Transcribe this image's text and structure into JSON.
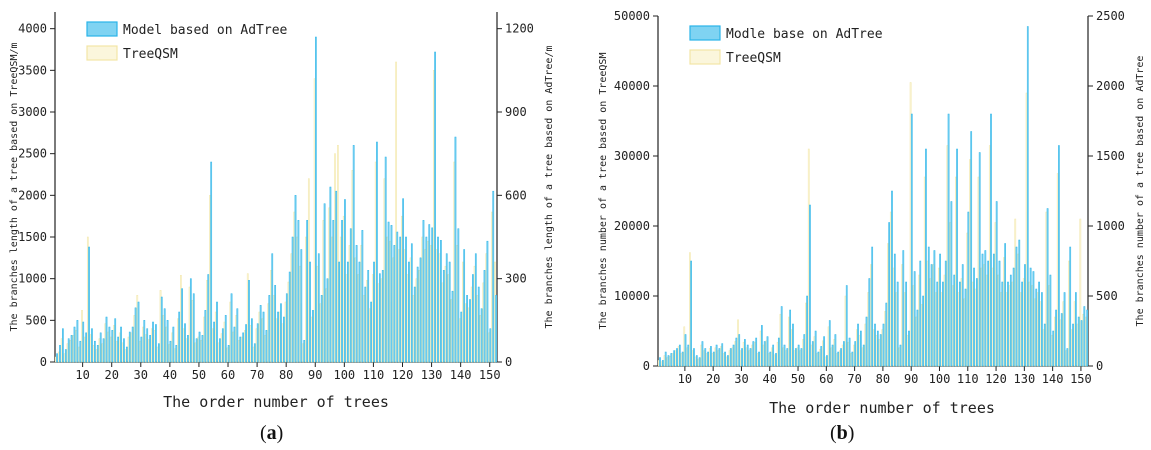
{
  "colors": {
    "model": "#2ab4e8",
    "model_fill": "#7fd3f2",
    "treeqsm": "#f2e6a6",
    "treeqsm_fill": "#fbf6dc",
    "axis": "#222222"
  },
  "captions": {
    "a": "a",
    "b": "b"
  },
  "chart_data": [
    {
      "type": "bar",
      "panel": "a",
      "xlabel": "The order number of trees",
      "ylabel_left": "The branches length of a tree based on TreeQSM/m",
      "ylabel_right": "The branches length of a tree based on AdTree/m",
      "ylim_left": [
        0,
        4200
      ],
      "ylim_right": [
        0,
        1260
      ],
      "xlim": [
        0.5,
        152.5
      ],
      "yticks_left": [
        "0",
        "500",
        "1000",
        "1500",
        "2000",
        "2500",
        "3000",
        "3500",
        "4000"
      ],
      "yticks_right": [
        "0",
        "300",
        "600",
        "900",
        "1200"
      ],
      "xticks": [
        "10",
        "20",
        "30",
        "40",
        "50",
        "60",
        "70",
        "80",
        "90",
        "100",
        "110",
        "120",
        "130",
        "140",
        "150"
      ],
      "legend": [
        "Model based on AdTree",
        "TreeQSM"
      ],
      "legend_position": "top-left",
      "series": [
        {
          "name": "Model based on AdTree",
          "axis": "left",
          "values": [
            100,
            200,
            400,
            150,
            280,
            320,
            420,
            500,
            250,
            480,
            350,
            1380,
            400,
            250,
            200,
            350,
            280,
            540,
            420,
            380,
            520,
            300,
            420,
            280,
            180,
            360,
            420,
            650,
            720,
            300,
            500,
            400,
            320,
            480,
            450,
            220,
            780,
            640,
            500,
            250,
            420,
            200,
            600,
            880,
            460,
            320,
            1000,
            820,
            280,
            360,
            320,
            620,
            1050,
            2400,
            480,
            720,
            280,
            400,
            560,
            200,
            820,
            420,
            640,
            300,
            350,
            450,
            980,
            520,
            220,
            460,
            680,
            600,
            380,
            800,
            1300,
            920,
            600,
            700,
            540,
            820,
            1080,
            1500,
            2000,
            1700,
            1350,
            260,
            1700,
            1200,
            620,
            3900,
            1300,
            800,
            1900,
            1000,
            2100,
            1700,
            2050,
            1200,
            1700,
            1950,
            1200,
            1600,
            2600,
            1400,
            1200,
            1580,
            900,
            1100,
            720,
            1200,
            2640,
            1060,
            1100,
            2460,
            1680,
            1640,
            1400,
            1560,
            1500,
            1960,
            1500,
            1200,
            1420,
            900,
            1140,
            1250,
            1700,
            1500,
            1650,
            1610,
            3720,
            1500,
            1460,
            1100,
            1300,
            1200,
            850,
            2700,
            1600,
            600,
            1350,
            800,
            750,
            1050,
            1300,
            900,
            640,
            1100,
            1450,
            400,
            2050,
            800
          ]
        },
        {
          "name": "TreeQSM",
          "axis": "left",
          "values": [
            60,
            120,
            280,
            100,
            220,
            260,
            320,
            380,
            180,
            620,
            300,
            1500,
            330,
            200,
            150,
            280,
            220,
            460,
            360,
            300,
            440,
            250,
            350,
            230,
            150,
            300,
            350,
            560,
            800,
            250,
            420,
            330,
            270,
            400,
            380,
            180,
            860,
            560,
            420,
            210,
            350,
            160,
            520,
            1040,
            400,
            280,
            900,
            740,
            230,
            300,
            260,
            540,
            980,
            2000,
            400,
            600,
            230,
            340,
            480,
            170,
            720,
            360,
            560,
            260,
            300,
            380,
            1060,
            440,
            180,
            400,
            600,
            520,
            320,
            700,
            1100,
            800,
            520,
            600,
            460,
            720,
            960,
            1300,
            1800,
            1500,
            1150,
            220,
            1500,
            2200,
            540,
            3400,
            1150,
            700,
            1700,
            880,
            1850,
            1500,
            2500,
            2600,
            1500,
            1750,
            1050,
            1400,
            2300,
            1250,
            1050,
            1400,
            800,
            980,
            640,
            1050,
            2400,
            940,
            1000,
            2200,
            1500,
            1450,
            1250,
            3600,
            1350,
            1750,
            1350,
            1050,
            1250,
            800,
            1000,
            1100,
            1500,
            1350,
            1450,
            1400,
            3500,
            1350,
            1300,
            950,
            1150,
            1050,
            750,
            2400,
            1400,
            520,
            1200,
            700,
            650,
            900,
            1150,
            800,
            560,
            950,
            1300,
            350,
            1800,
            1200
          ]
        }
      ]
    },
    {
      "type": "bar",
      "panel": "b",
      "xlabel": "The order number of trees",
      "ylabel_left": "The branches number of a tree based on TreeQSM",
      "ylabel_right": "The branches number of a tree based on AdTree",
      "ylim_left": [
        0,
        50000
      ],
      "ylim_right": [
        0,
        2500
      ],
      "xlim": [
        0.5,
        152.5
      ],
      "yticks_left": [
        "0",
        "10000",
        "20000",
        "30000",
        "40000",
        "50000"
      ],
      "yticks_right": [
        "0",
        "500",
        "1000",
        "1500",
        "2000",
        "2500"
      ],
      "xticks": [
        "10",
        "20",
        "30",
        "40",
        "50",
        "60",
        "70",
        "80",
        "90",
        "100",
        "110",
        "120",
        "130",
        "140",
        "150"
      ],
      "legend": [
        "Modle base on AdTree",
        "TreeQSM"
      ],
      "legend_position": "top-left",
      "series": [
        {
          "name": "Modle base on AdTree",
          "axis": "left",
          "values": [
            1200,
            800,
            2000,
            1500,
            1800,
            2200,
            2500,
            3000,
            2000,
            4500,
            3000,
            15000,
            2500,
            1500,
            1200,
            3500,
            2500,
            2000,
            2800,
            2000,
            3000,
            2500,
            3200,
            2000,
            1500,
            2500,
            3000,
            4000,
            4500,
            2500,
            3800,
            3000,
            2500,
            3500,
            4000,
            2000,
            5800,
            3500,
            4200,
            2000,
            3000,
            1800,
            4000,
            8500,
            3000,
            2500,
            8000,
            6000,
            2500,
            3000,
            2500,
            4500,
            10000,
            23000,
            3500,
            5000,
            2000,
            2800,
            4200,
            1500,
            6500,
            3000,
            4500,
            2000,
            2500,
            3500,
            11500,
            4000,
            2000,
            3500,
            6000,
            5000,
            3000,
            7000,
            12500,
            17000,
            6000,
            5000,
            4500,
            6000,
            9000,
            20500,
            25000,
            16000,
            12000,
            3000,
            16500,
            12000,
            5000,
            36000,
            13500,
            8000,
            15000,
            10000,
            31000,
            17000,
            14500,
            16500,
            12000,
            16000,
            12000,
            15000,
            36000,
            23500,
            13000,
            31000,
            12000,
            14500,
            11000,
            22000,
            33500,
            14000,
            12500,
            30500,
            16000,
            16500,
            15000,
            36000,
            16000,
            23500,
            15000,
            12000,
            17500,
            12000,
            13000,
            14000,
            17000,
            18000,
            12000,
            14500,
            48500,
            14000,
            13500,
            11000,
            12000,
            10500,
            6000,
            22500,
            13000,
            5000,
            8000,
            31500,
            7500,
            10500,
            2500,
            17000,
            6000,
            10500,
            7000,
            6500,
            8500,
            8000
          ]
        },
        {
          "name": "TreeQSM",
          "axis": "left",
          "values": [
            800,
            600,
            1500,
            1200,
            1400,
            1800,
            2200,
            2800,
            1800,
            5600,
            2600,
            16200,
            2200,
            1300,
            1000,
            3000,
            2200,
            1800,
            2500,
            1800,
            2600,
            2200,
            2800,
            1800,
            1300,
            2200,
            2600,
            3500,
            6600,
            2200,
            3400,
            2600,
            2200,
            3000,
            3400,
            1800,
            5000,
            3000,
            3600,
            1800,
            2600,
            1600,
            3400,
            7400,
            2600,
            2200,
            7000,
            5200,
            2200,
            2600,
            2200,
            3800,
            9000,
            31000,
            3000,
            4200,
            1800,
            2400,
            3600,
            1300,
            5600,
            2600,
            3800,
            1800,
            2200,
            3000,
            10000,
            3400,
            1800,
            3000,
            5200,
            4400,
            2600,
            6000,
            10500,
            14500,
            5200,
            4400,
            3800,
            5200,
            7800,
            17500,
            22000,
            14000,
            10500,
            2600,
            14500,
            10500,
            4400,
            40500,
            11500,
            7000,
            13000,
            8800,
            27000,
            15000,
            12500,
            14500,
            10500,
            14000,
            10500,
            13000,
            31500,
            20500,
            11500,
            27000,
            10500,
            12500,
            9600,
            19000,
            29500,
            12000,
            11000,
            27000,
            14000,
            14500,
            13000,
            31500,
            14000,
            20500,
            13000,
            10500,
            15500,
            10500,
            11500,
            12000,
            21000,
            16000,
            10500,
            12500,
            39000,
            12000,
            11500,
            9600,
            10500,
            9200,
            5200,
            22000,
            11500,
            4400,
            7000,
            27500,
            6600,
            9200,
            2200,
            15000,
            5200,
            9200,
            6000,
            21000,
            7400,
            7000
          ]
        }
      ]
    }
  ]
}
